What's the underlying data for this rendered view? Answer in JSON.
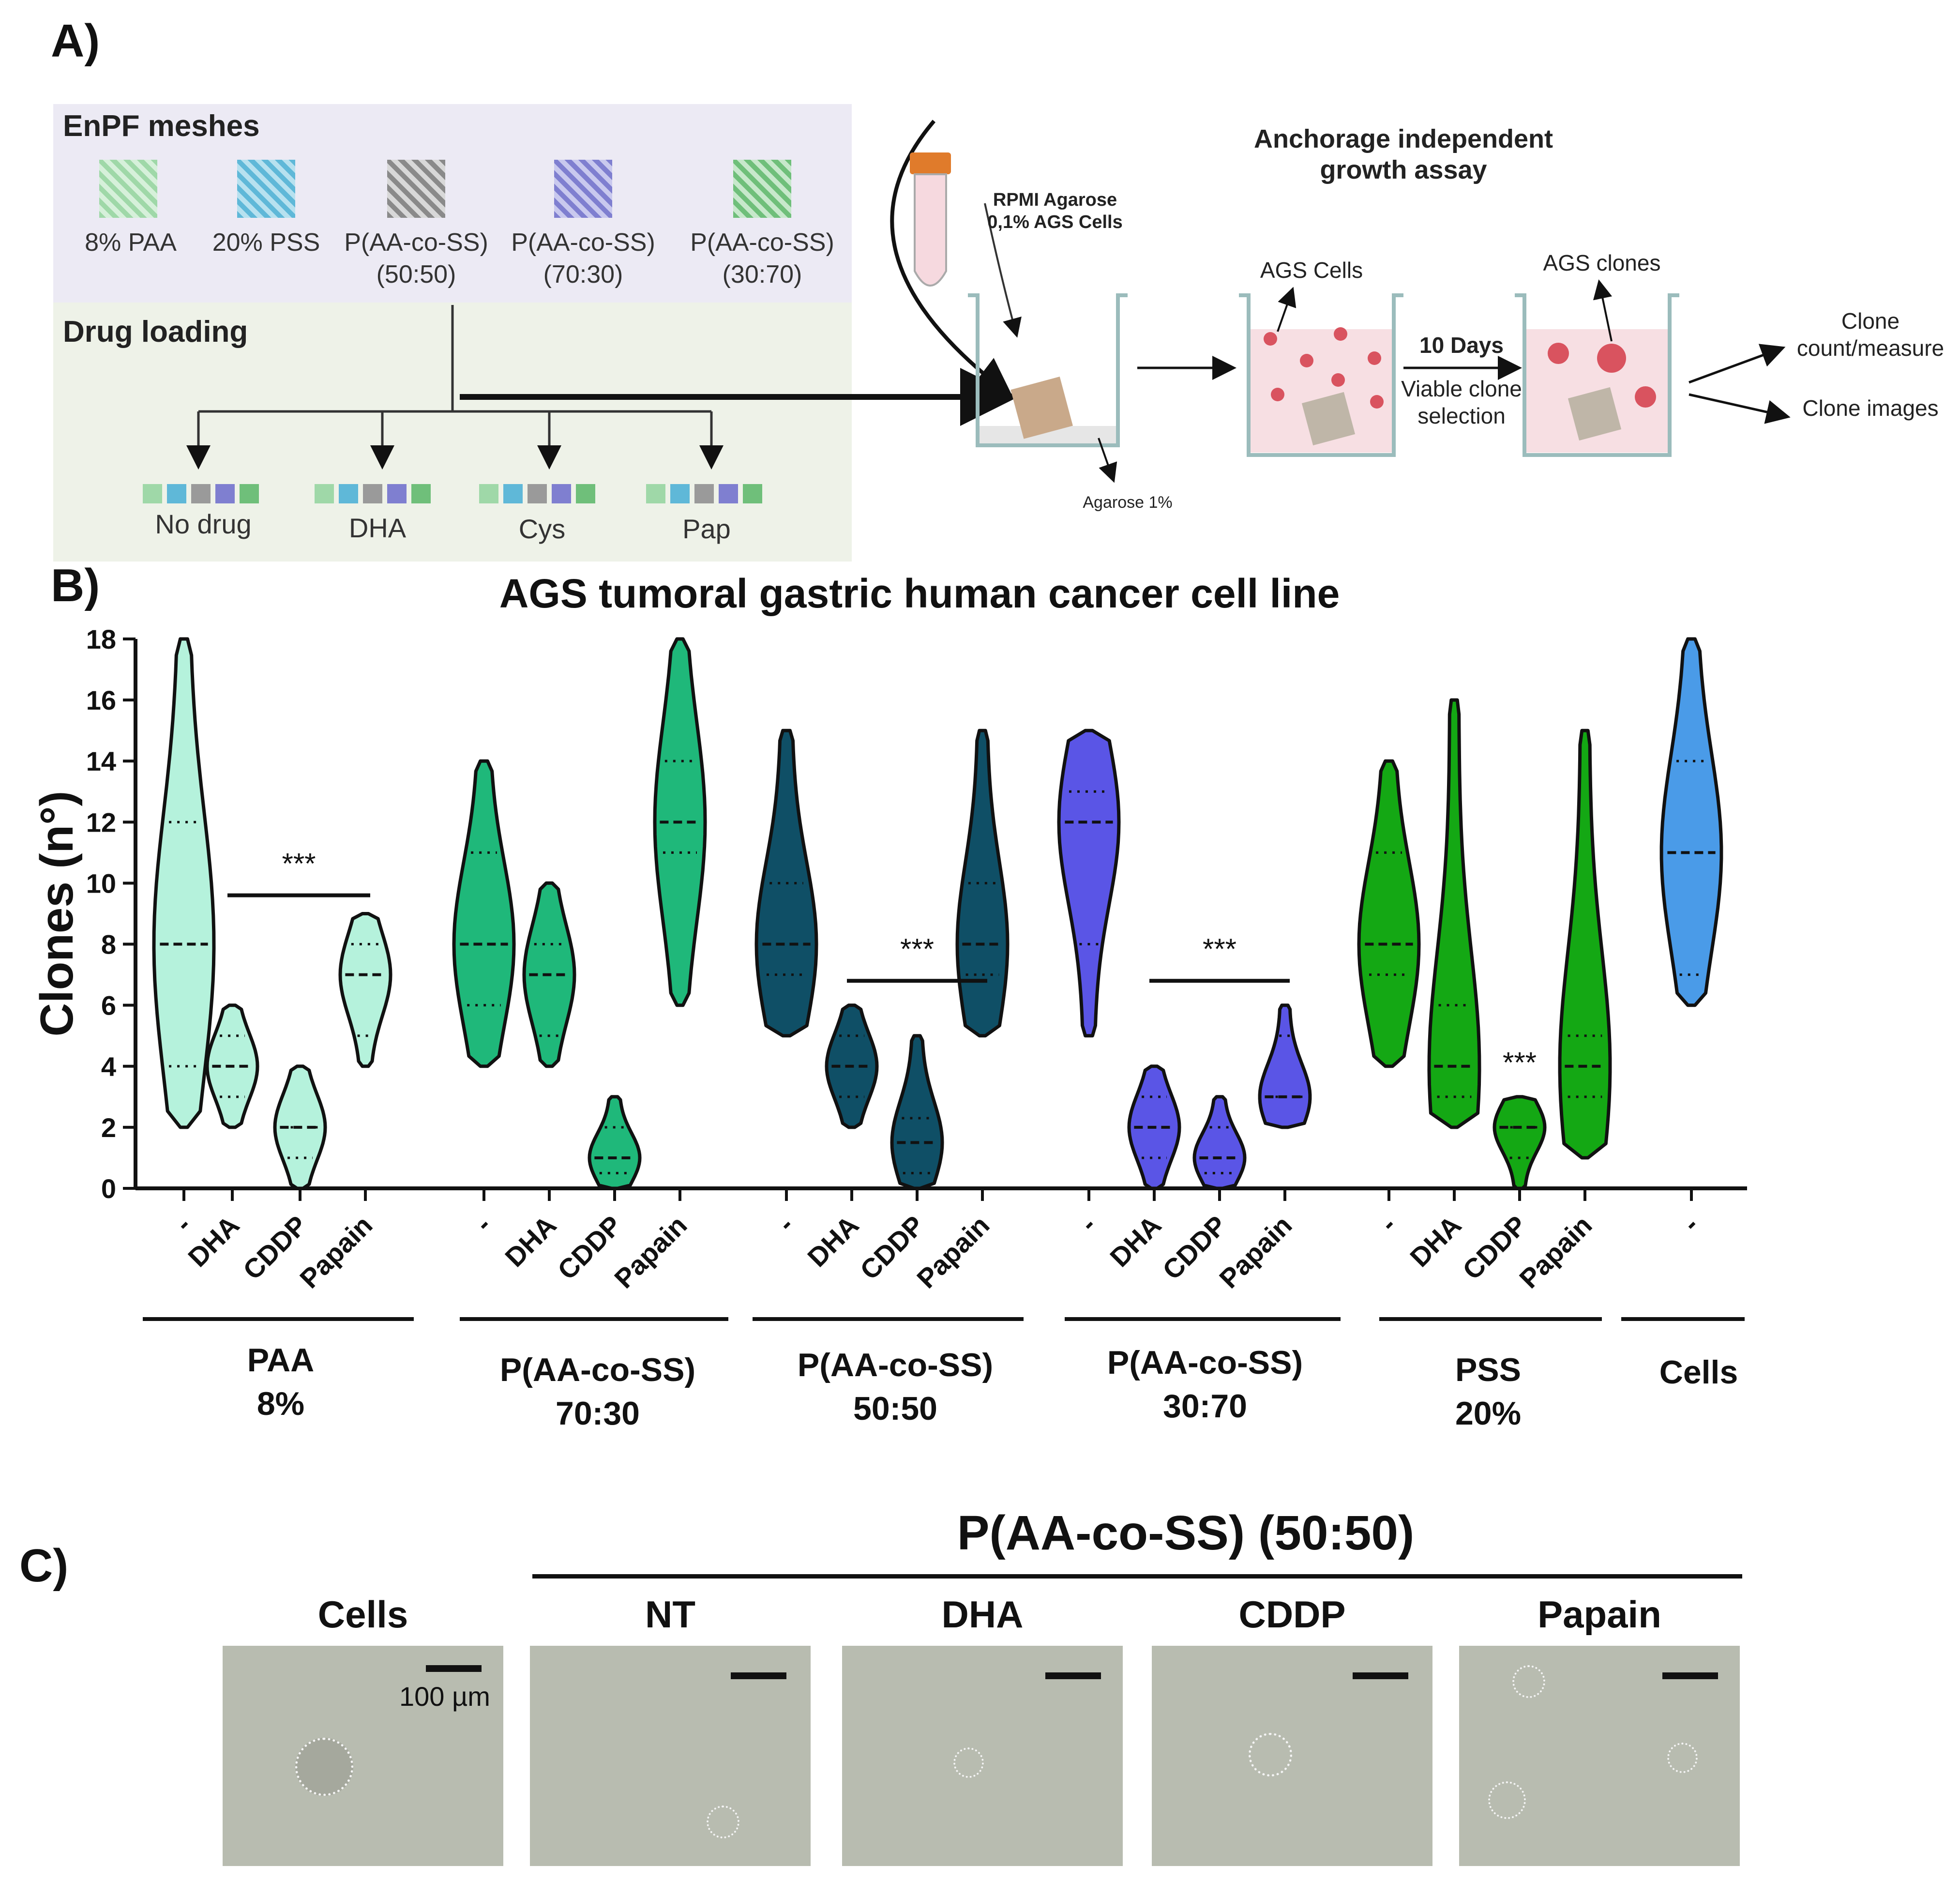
{
  "panels": {
    "a": "A)",
    "b": "B)",
    "c": "C)"
  },
  "panel_a": {
    "mesh_header": "EnPF meshes",
    "meshes": [
      {
        "line1": "8% PAA",
        "line2": "",
        "color": "#9fd8a8"
      },
      {
        "line1": "20% PSS",
        "line2": "",
        "color": "#5fb8d8"
      },
      {
        "line1": "P(AA-co-SS)",
        "line2": "(50:50)",
        "color": "#9a9a9a"
      },
      {
        "line1": "P(AA-co-SS)",
        "line2": "(70:30)",
        "color": "#7f7fd0"
      },
      {
        "line1": "P(AA-co-SS)",
        "line2": "(30:70)",
        "color": "#6fbf7a"
      }
    ],
    "drug_header": "Drug loading",
    "drugs": [
      "No drug",
      "DHA",
      "Cys",
      "Pap"
    ],
    "assay_title": "Anchorage independent growth assay",
    "tube_text": "RPMI Agarose 0,1% AGS Cells",
    "agarose_label": "Agarose 1%",
    "cells_label": "AGS Cells",
    "clones_label": "AGS clones",
    "days_label": "10 Days",
    "selection_label": "Viable clone selection",
    "out1": "Clone count/measure",
    "out2": "Clone images"
  },
  "chart_data": {
    "type": "violin",
    "title": "AGS tumoral gastric human cancer cell line",
    "ylabel": "Clones (n°)",
    "ylim": [
      0,
      18
    ],
    "yticks": [
      0,
      2,
      4,
      6,
      8,
      10,
      12,
      14,
      16,
      18
    ],
    "groups": [
      {
        "name": "PAA 8%",
        "line1": "PAA",
        "line2": "8%"
      },
      {
        "name": "P(AA-co-SS) 70:30",
        "line1": "P(AA-co-SS)",
        "line2": "70:30"
      },
      {
        "name": "P(AA-co-SS) 50:50",
        "line1": "P(AA-co-SS)",
        "line2": "50:50"
      },
      {
        "name": "P(AA-co-SS) 30:70",
        "line1": "P(AA-co-SS)",
        "line2": "30:70"
      },
      {
        "name": "PSS 20%",
        "line1": "PSS",
        "line2": "20%"
      },
      {
        "name": "Cells",
        "line1": "Cells",
        "line2": ""
      }
    ],
    "violins": [
      {
        "group": 0,
        "label": "-",
        "color": "#b5f2dc",
        "min": 2,
        "max": 18,
        "median": 8,
        "q1": 4,
        "q3": 12
      },
      {
        "group": 0,
        "label": "DHA",
        "color": "#b5f2dc",
        "min": 2,
        "max": 6,
        "median": 4,
        "q1": 3,
        "q3": 5
      },
      {
        "group": 0,
        "label": "CDDP",
        "color": "#b5f2dc",
        "min": 0,
        "max": 4,
        "median": 2,
        "q1": 1,
        "q3": 2
      },
      {
        "group": 0,
        "label": "Papain",
        "color": "#b5f2dc",
        "min": 4,
        "max": 9,
        "median": 7,
        "q1": 5,
        "q3": 8
      },
      {
        "group": 1,
        "label": "-",
        "color": "#1fb87a",
        "min": 4,
        "max": 14,
        "median": 8,
        "q1": 6,
        "q3": 11
      },
      {
        "group": 1,
        "label": "DHA",
        "color": "#1fb87a",
        "min": 4,
        "max": 10,
        "median": 7,
        "q1": 5,
        "q3": 8
      },
      {
        "group": 1,
        "label": "CDDP",
        "color": "#1fb87a",
        "min": 0,
        "max": 3,
        "median": 1,
        "q1": 0.5,
        "q3": 2
      },
      {
        "group": 1,
        "label": "Papain",
        "color": "#1fb87a",
        "min": 6,
        "max": 18,
        "median": 12,
        "q1": 11,
        "q3": 14
      },
      {
        "group": 2,
        "label": "-",
        "color": "#0f4f66",
        "min": 5,
        "max": 15,
        "median": 8,
        "q1": 7,
        "q3": 10
      },
      {
        "group": 2,
        "label": "DHA",
        "color": "#0f4f66",
        "min": 2,
        "max": 6,
        "median": 4,
        "q1": 3,
        "q3": 5
      },
      {
        "group": 2,
        "label": "CDDP",
        "color": "#0f4f66",
        "min": 0,
        "max": 5,
        "median": 1.5,
        "q1": 0.5,
        "q3": 2.3
      },
      {
        "group": 2,
        "label": "Papain",
        "color": "#0f4f66",
        "min": 5,
        "max": 15,
        "median": 8,
        "q1": 7,
        "q3": 10
      },
      {
        "group": 3,
        "label": "-",
        "color": "#5a55e6",
        "min": 5,
        "max": 15,
        "median": 12,
        "q1": 8,
        "q3": 13
      },
      {
        "group": 3,
        "label": "DHA",
        "color": "#5a55e6",
        "min": 0,
        "max": 4,
        "median": 2,
        "q1": 1,
        "q3": 3
      },
      {
        "group": 3,
        "label": "CDDP",
        "color": "#5a55e6",
        "min": 0,
        "max": 3,
        "median": 1,
        "q1": 0.5,
        "q3": 2
      },
      {
        "group": 3,
        "label": "Papain",
        "color": "#5a55e6",
        "min": 2,
        "max": 6,
        "median": 3,
        "q1": 3,
        "q3": 5
      },
      {
        "group": 4,
        "label": "-",
        "color": "#14a814",
        "min": 4,
        "max": 14,
        "median": 8,
        "q1": 7,
        "q3": 11
      },
      {
        "group": 4,
        "label": "DHA",
        "color": "#14a814",
        "min": 2,
        "max": 16,
        "median": 4,
        "q1": 3,
        "q3": 6
      },
      {
        "group": 4,
        "label": "CDDP",
        "color": "#14a814",
        "min": 0,
        "max": 3,
        "median": 2,
        "q1": 1,
        "q3": 2
      },
      {
        "group": 4,
        "label": "Papain",
        "color": "#14a814",
        "min": 1,
        "max": 15,
        "median": 4,
        "q1": 3,
        "q3": 5
      },
      {
        "group": 5,
        "label": "-",
        "color": "#4a9be8",
        "min": 6,
        "max": 18,
        "median": 11,
        "q1": 7,
        "q3": 14
      }
    ],
    "annotations": [
      {
        "text": "***",
        "from": 1,
        "to": 3,
        "y": 9.6
      },
      {
        "text": "***",
        "from": 9,
        "to": 11,
        "y": 6.8
      },
      {
        "text": "***",
        "from": 13,
        "to": 15,
        "y": 6.8
      },
      {
        "text": "***",
        "at": 18,
        "y": 3.8
      }
    ]
  },
  "panel_c": {
    "group_title": "P(AA-co-SS) (50:50)",
    "images": [
      "Cells",
      "NT",
      "DHA",
      "CDDP",
      "Papain"
    ],
    "scale_label": "100 µm"
  }
}
